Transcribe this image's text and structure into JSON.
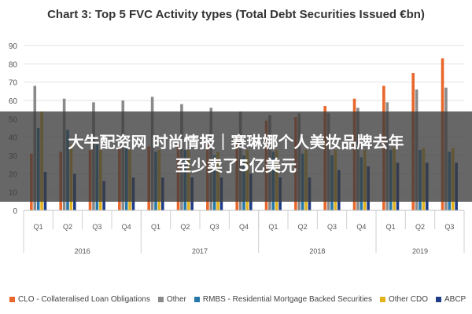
{
  "chart_data": {
    "type": "bar",
    "title": "Chart 3: Top 5 FVC Activity types (Total Debt Securities Issued €bn)",
    "ylim": [
      0,
      90
    ],
    "yticks": [
      0,
      10,
      20,
      30,
      40,
      50,
      60,
      70,
      80,
      90
    ],
    "grid": true,
    "legend_position": "bottom",
    "categories": [
      "Q1",
      "Q2",
      "Q3",
      "Q4",
      "Q1",
      "Q2",
      "Q3",
      "Q4",
      "Q1",
      "Q2",
      "Q3",
      "Q4",
      "Q1",
      "Q2",
      "Q3"
    ],
    "year_groups": [
      {
        "label": "2016",
        "count": 4
      },
      {
        "label": "2017",
        "count": 4
      },
      {
        "label": "2018",
        "count": 4
      },
      {
        "label": "2019",
        "count": 3
      }
    ],
    "series": [
      {
        "name": "CLO - Collateralised Loan Obligations",
        "color": "#e8672b",
        "values": [
          31,
          32,
          33,
          34,
          35,
          36,
          38,
          40,
          49,
          51,
          57,
          61,
          68,
          75,
          83
        ]
      },
      {
        "name": "Other",
        "color": "#8a8a8a",
        "values": [
          68,
          61,
          59,
          60,
          62,
          58,
          56,
          54,
          52,
          53,
          53,
          56,
          59,
          66,
          67
        ]
      },
      {
        "name": "RMBS - Residential Mortgage Backed Securities",
        "color": "#2778a8",
        "values": [
          45,
          44,
          36,
          34,
          32,
          33,
          30,
          30,
          32,
          31,
          30,
          29,
          33,
          33,
          32
        ]
      },
      {
        "name": "Other CDO",
        "color": "#e3b21c",
        "values": [
          54,
          36,
          33,
          33,
          33,
          33,
          32,
          33,
          33,
          33,
          33,
          33,
          34,
          34,
          34
        ]
      },
      {
        "name": "ABCP",
        "color": "#1f3d87",
        "values": [
          21,
          20,
          16,
          18,
          18,
          18,
          18,
          20,
          18,
          18,
          22,
          24,
          26,
          26,
          26
        ]
      }
    ]
  },
  "overlay": {
    "line1": "大牛配资网 时尚情报｜赛琳娜个人美妆品牌去年",
    "line2": "至少卖了5亿美元"
  }
}
